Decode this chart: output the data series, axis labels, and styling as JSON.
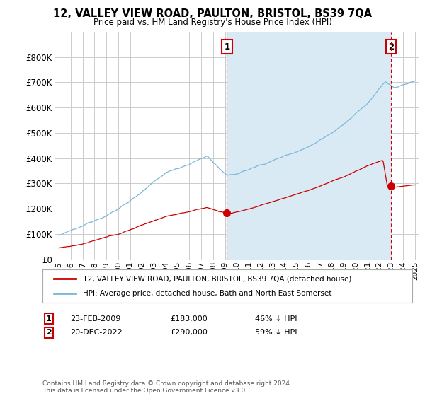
{
  "title": "12, VALLEY VIEW ROAD, PAULTON, BRISTOL, BS39 7QA",
  "subtitle": "Price paid vs. HM Land Registry's House Price Index (HPI)",
  "background_color": "#ffffff",
  "grid_color": "#cccccc",
  "hpi_color": "#7ab8d9",
  "hpi_fill_color": "#daeaf5",
  "price_color": "#cc0000",
  "annotation_color": "#cc0000",
  "sale1_date": "23-FEB-2009",
  "sale1_price": 183000,
  "sale1_pct": "46%",
  "sale1_x": 2009.15,
  "sale2_date": "20-DEC-2022",
  "sale2_price": 290000,
  "sale2_pct": "59%",
  "sale2_x": 2022.97,
  "footer": "Contains HM Land Registry data © Crown copyright and database right 2024.\nThis data is licensed under the Open Government Licence v3.0.",
  "legend_label1": "12, VALLEY VIEW ROAD, PAULTON, BRISTOL, BS39 7QA (detached house)",
  "legend_label2": "HPI: Average price, detached house, Bath and North East Somerset",
  "ylim": [
    0,
    900000
  ],
  "xlim": [
    1994.7,
    2025.3
  ],
  "yticks": [
    0,
    100000,
    200000,
    300000,
    400000,
    500000,
    600000,
    700000,
    800000
  ],
  "xticks": [
    1995,
    1996,
    1997,
    1998,
    1999,
    2000,
    2001,
    2002,
    2003,
    2004,
    2005,
    2006,
    2007,
    2008,
    2009,
    2010,
    2011,
    2012,
    2013,
    2014,
    2015,
    2016,
    2017,
    2018,
    2019,
    2020,
    2021,
    2022,
    2023,
    2024,
    2025
  ]
}
